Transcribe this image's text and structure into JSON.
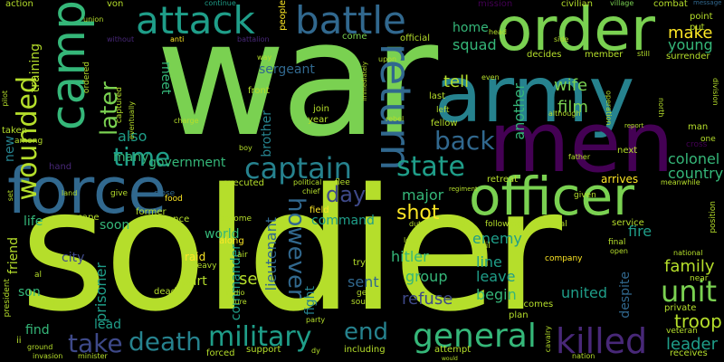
{
  "colors": {
    "background": "#000000",
    "palette": [
      "#b5de2b",
      "#7ad151",
      "#35b779",
      "#1f9e89",
      "#26828e",
      "#31688e",
      "#3e4989",
      "#482878",
      "#440154",
      "#fde725"
    ]
  },
  "words": {
    "war": "war",
    "soldier": "soldier",
    "army": "army",
    "men": "men",
    "force": "force",
    "officer": "officer",
    "order": "order",
    "camp": "camp",
    "attack": "attack",
    "battle": "battle",
    "return": "return",
    "captain": "captain",
    "killed": "killed",
    "general": "general",
    "military": "military",
    "death": "death",
    "take": "take",
    "state": "state",
    "unit": "unit",
    "wounded": "wounded",
    "time": "time",
    "back": "back",
    "later": "later",
    "however": "however",
    "day": "day",
    "end": "end",
    "shot": "shot",
    "troop": "troop",
    "family": "family",
    "leader": "leader",
    "country": "country",
    "colonel": "colonel",
    "make": "make",
    "young": "young",
    "wife": "wife",
    "film": "film",
    "tell": "tell",
    "also": "also",
    "many": "many",
    "government": "government",
    "sergeant": "sergeant",
    "major": "major",
    "command": "command",
    "enemy": "enemy",
    "hitler": "hitler",
    "line": "line",
    "leave": "leave",
    "begin": "begin",
    "refuse": "refuse",
    "group": "group",
    "sent": "sent",
    "united": "united",
    "see": "see",
    "part": "part",
    "lieutenant": "lieutenant",
    "fight": "fight",
    "world": "world",
    "soon": "soon",
    "life": "life",
    "friend": "friend",
    "son": "son",
    "prisoner": "prisoner",
    "commander": "commander",
    "lead": "lead",
    "despite": "despite",
    "another": "another",
    "meet": "meet",
    "brother": "brother",
    "squad": "squad",
    "home": "home",
    "training": "training",
    "fire": "fire",
    "city": "city",
    "raid": "raid",
    "new": "new",
    "find": "find",
    "action": "action",
    "von": "von",
    "continue": "continue",
    "people": "people",
    "mission": "mission",
    "civilian": "civilian",
    "village": "village",
    "combat": "combat",
    "message": "message",
    "point": "point",
    "put": "put",
    "union": "union",
    "head": "head",
    "division": "division",
    "without": "without",
    "anti": "anti",
    "battalion": "battalion",
    "come": "come",
    "official": "official",
    "side": "side",
    "surrender": "surrender",
    "decides": "decides",
    "member": "member",
    "still": "still",
    "pilot": "pilot",
    "ordered": "ordered",
    "way": "way",
    "upon": "upon",
    "immediately": "immediately",
    "even": "even",
    "last": "last",
    "left": "left",
    "fellow": "fellow",
    "north": "north",
    "although": "although",
    "operation": "operation",
    "report": "report",
    "man": "man",
    "one": "one",
    "taken": "taken",
    "among": "among",
    "eventually": "eventually",
    "captured": "captured",
    "charge": "charge",
    "front": "front",
    "join": "join",
    "year": "year",
    "rebel": "rebel",
    "boy": "boy",
    "next": "next",
    "cross": "cross",
    "father": "father",
    "hand": "hand",
    "land": "land",
    "give": "give",
    "close": "close",
    "food": "food",
    "executed": "executed",
    "political": "political",
    "flee": "flee",
    "chief": "chief",
    "regiment": "regiment",
    "retreat": "retreat",
    "arrives": "arrives",
    "given": "given",
    "meanwhile": "meanwhile",
    "set": "set",
    "former": "former",
    "escape": "escape",
    "resistance": "resistance",
    "become": "become",
    "field": "field",
    "duty": "duty",
    "fighting": "fighting",
    "following": "following",
    "several": "several",
    "service": "service",
    "position": "position",
    "along": "along",
    "air": "air",
    "heavy": "heavy",
    "local": "local",
    "civil": "civil",
    "final": "final",
    "open": "open",
    "national": "national",
    "company": "company",
    "try": "try",
    "finally": "finally",
    "al": "al",
    "radio": "radio",
    "capture": "capture",
    "get": "get",
    "south": "south",
    "near": "near",
    "private": "private",
    "dead": "dead",
    "led": "led",
    "becomes": "becomes",
    "plan": "plan",
    "veteran": "veteran",
    "president": "president",
    "ii": "ii",
    "party": "party",
    "nation": "nation",
    "receives": "receives",
    "ground": "ground",
    "invasion": "invasion",
    "minister": "minister",
    "forced": "forced",
    "support": "support",
    "dy": "dy",
    "including": "including",
    "attempt": "attempt",
    "would": "would",
    "cavalry": "cavalry"
  }
}
